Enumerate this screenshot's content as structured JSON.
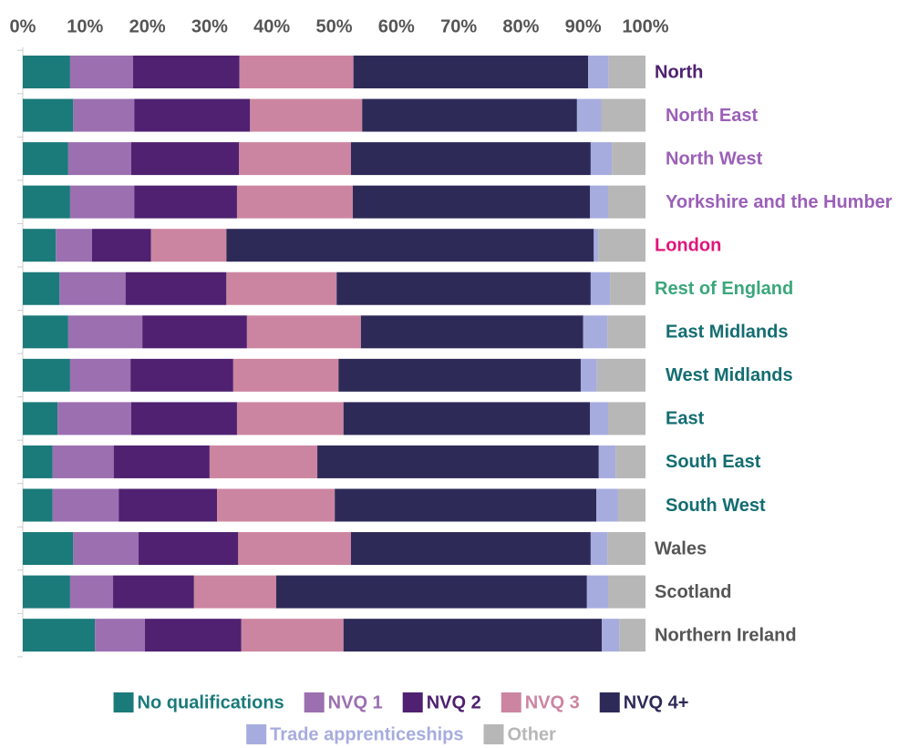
{
  "chart_data": {
    "type": "stacked_barh",
    "categories": [
      "North",
      "North East",
      "North West",
      "Yorkshire and the Humber",
      "London",
      "Rest of England",
      "East Midlands",
      "West Midlands",
      "East",
      "South East",
      "South West",
      "Wales",
      "Scotland",
      "Northern Ireland"
    ],
    "label_colors": [
      "#4f2170",
      "#9b5fb8",
      "#9b5fb8",
      "#9b5fb8",
      "#e0157a",
      "#3aa77a",
      "#136d72",
      "#136d72",
      "#136d72",
      "#136d72",
      "#136d72",
      "#555555",
      "#555555",
      "#555555"
    ],
    "label_levels": [
      0,
      1,
      1,
      1,
      0,
      0,
      1,
      1,
      1,
      1,
      1,
      0,
      0,
      0
    ],
    "series": [
      {
        "name": "No qualifications",
        "color": "#1b7a7a",
        "values": [
          7.6,
          8.1,
          7.3,
          7.6,
          5.3,
          5.9,
          7.3,
          7.6,
          5.6,
          4.8,
          4.8,
          8.1,
          7.6,
          11.6
        ]
      },
      {
        "name": "NVQ 1",
        "color": "#9b6fb0",
        "values": [
          10.1,
          9.8,
          10.1,
          10.3,
          5.8,
          10.6,
          11.9,
          9.7,
          11.8,
          9.8,
          10.6,
          10.5,
          6.9,
          8.0
        ]
      },
      {
        "name": "NVQ 2",
        "color": "#4f2170",
        "values": [
          17.1,
          18.6,
          17.3,
          16.5,
          9.5,
          16.2,
          16.8,
          16.5,
          17.0,
          15.4,
          15.8,
          16.0,
          13.0,
          15.5
        ]
      },
      {
        "name": "NVQ 3",
        "color": "#cc85a0",
        "values": [
          18.3,
          18.0,
          18.0,
          18.6,
          12.1,
          17.7,
          18.3,
          16.9,
          17.1,
          17.3,
          18.9,
          18.1,
          13.2,
          16.4
        ]
      },
      {
        "name": "NVQ 4+",
        "color": "#2e2a58",
        "values": [
          37.7,
          34.5,
          38.5,
          38.1,
          59.0,
          40.8,
          35.7,
          38.9,
          39.6,
          45.2,
          42.0,
          38.5,
          49.9,
          41.5
        ]
      },
      {
        "name": "Trade apprenticeships",
        "color": "#a7acdf",
        "values": [
          3.3,
          3.9,
          3.4,
          2.9,
          0.7,
          3.1,
          3.9,
          2.6,
          2.9,
          2.7,
          3.5,
          2.7,
          3.4,
          2.8
        ]
      },
      {
        "name": "Other",
        "color": "#b7b7b7",
        "values": [
          5.9,
          7.1,
          5.4,
          6.0,
          7.6,
          5.7,
          6.1,
          7.8,
          6.0,
          4.8,
          4.4,
          6.1,
          6.0,
          4.2
        ]
      }
    ],
    "xlim": [
      0,
      100
    ],
    "xticks": [
      {
        "value": 0,
        "label": "0%"
      },
      {
        "value": 10,
        "label": "10%"
      },
      {
        "value": 20,
        "label": "20%"
      },
      {
        "value": 30,
        "label": "30%"
      },
      {
        "value": 40,
        "label": "40%"
      },
      {
        "value": 50,
        "label": "50%"
      },
      {
        "value": 60,
        "label": "60%"
      },
      {
        "value": 70,
        "label": "70%"
      },
      {
        "value": 80,
        "label": "80%"
      },
      {
        "value": 90,
        "label": "90%"
      },
      {
        "value": 100,
        "label": "100%"
      }
    ],
    "legend": "bottom"
  }
}
